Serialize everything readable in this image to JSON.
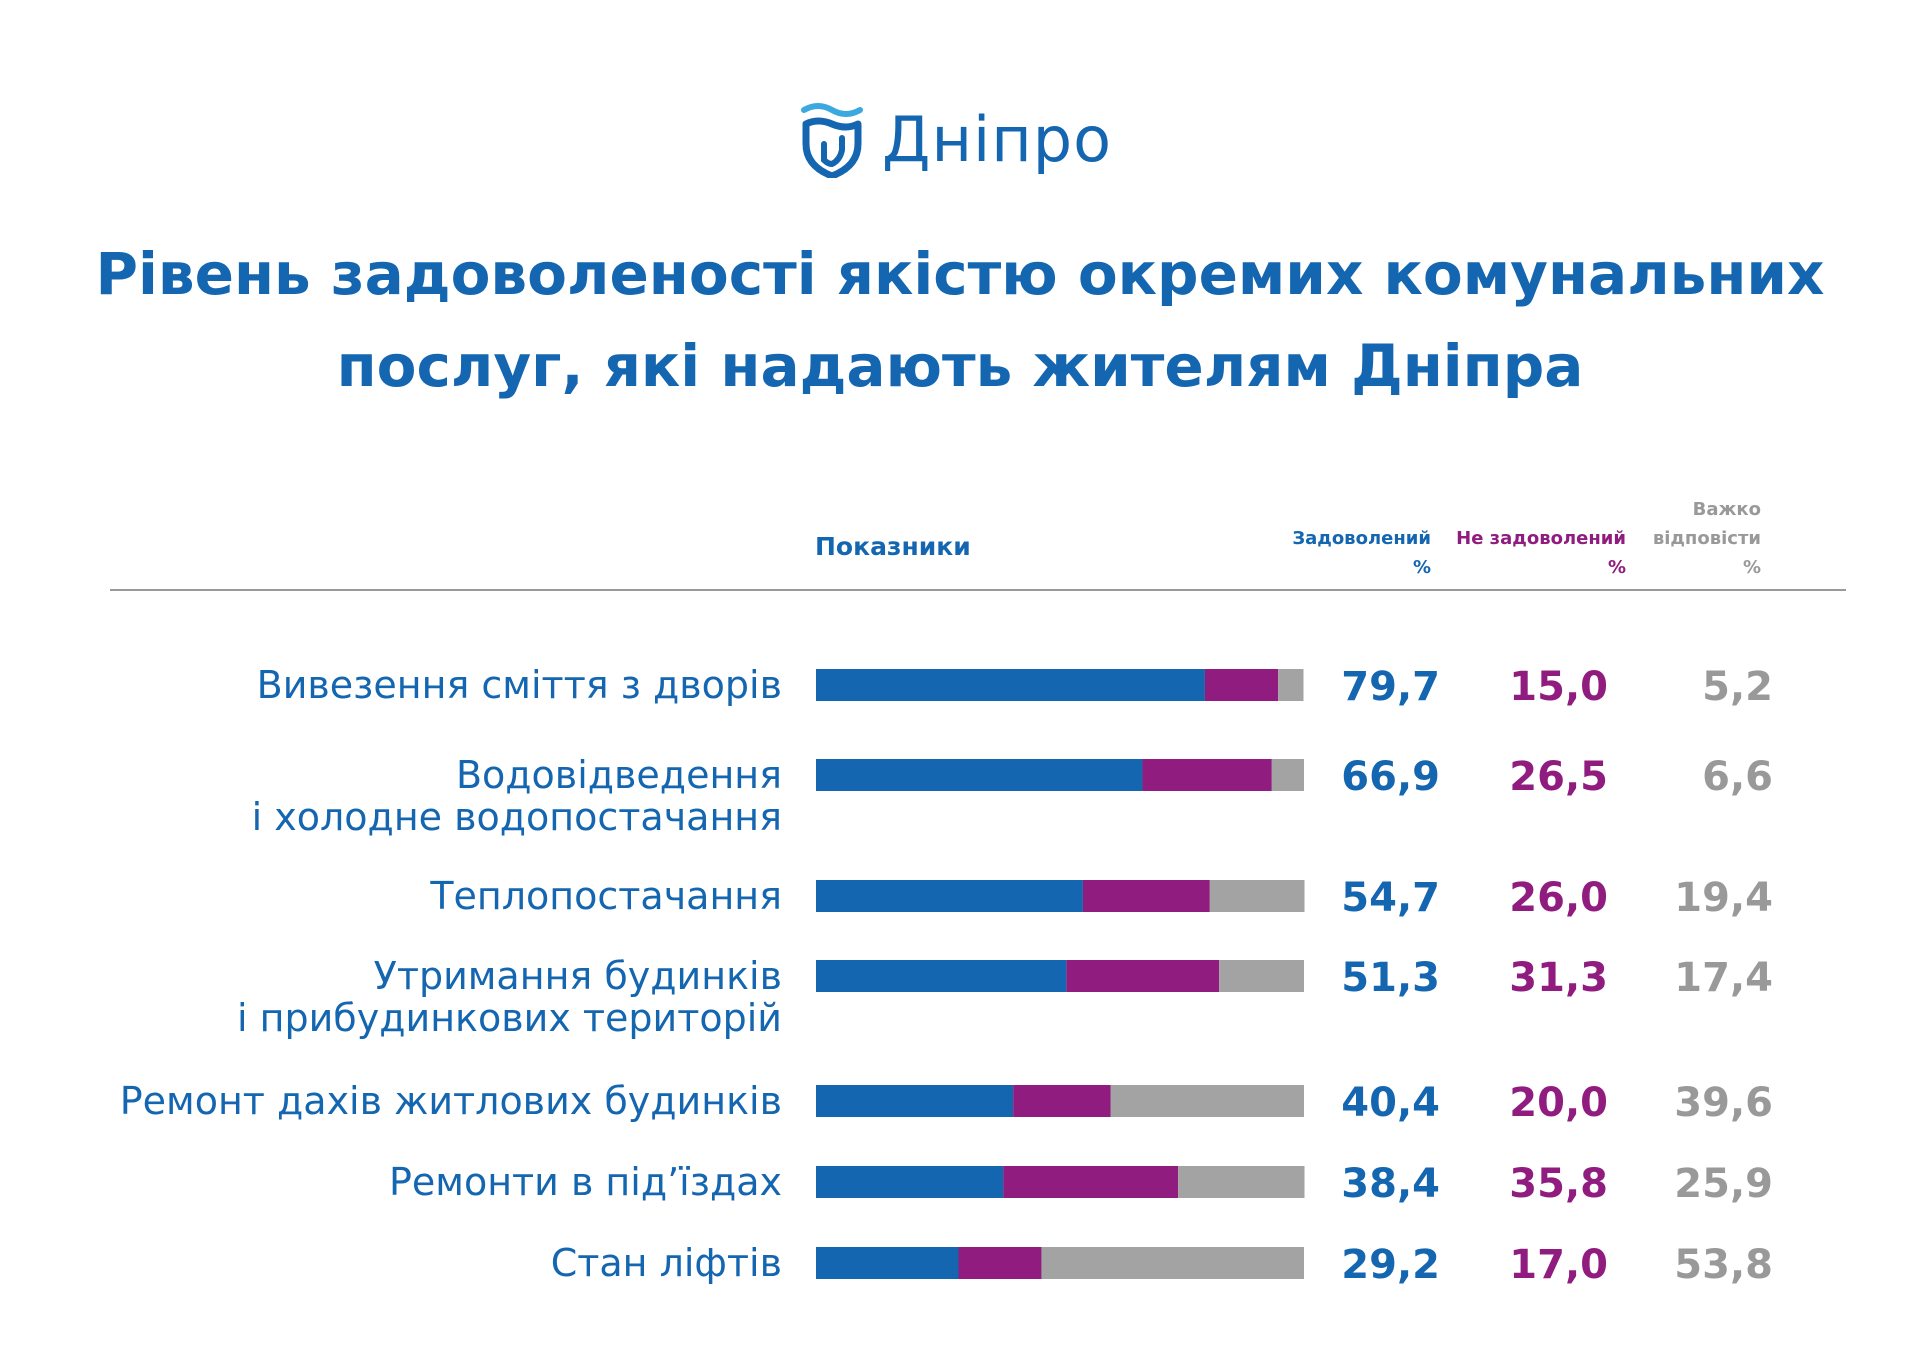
{
  "header": {
    "logo_text": "Дніпро"
  },
  "title_lines": [
    "Рівень задоволеності якістю окремих комунальних",
    "послуг, які надають жителям Дніпра"
  ],
  "table_header": {
    "indicators_label": "Показники",
    "satisfied_lines": [
      "Задоволений",
      "%"
    ],
    "not_satisfied_lines": [
      "Не задоволений",
      "%"
    ],
    "hard_to_say_lines": [
      "Важко",
      "відповісти",
      "%"
    ]
  },
  "colors": {
    "satisfied": "#1466b0",
    "not_satisfied": "#8f1c7e",
    "hard_to_say": "#a3a3a3",
    "title": "#1466b0"
  },
  "chart_data": {
    "type": "bar",
    "orientation": "horizontal",
    "stacked": true,
    "categories": [
      [
        "Вивезення сміття з дворів"
      ],
      [
        "Водовідведення",
        "і холодне водопостачання"
      ],
      [
        "Теплопостачання"
      ],
      [
        "Утримання будинків",
        "і прибудинкових територій"
      ],
      [
        "Ремонт дахів житлових будинків"
      ],
      [
        "Ремонти в під’їздах"
      ],
      [
        "Стан ліфтів"
      ]
    ],
    "series": [
      {
        "name": "Задоволений",
        "values": [
          79.7,
          66.9,
          54.7,
          51.3,
          40.4,
          38.4,
          29.2
        ],
        "labels": [
          "79,7",
          "66,9",
          "54,7",
          "51,3",
          "40,4",
          "38,4",
          "29,2"
        ]
      },
      {
        "name": "Не задоволений",
        "values": [
          15.0,
          26.5,
          26.0,
          31.3,
          20.0,
          35.8,
          17.0
        ],
        "labels": [
          "15,0",
          "26,5",
          "26,0",
          "31,3",
          "20,0",
          "35,8",
          "17,0"
        ]
      },
      {
        "name": "Важко відповісти",
        "values": [
          5.2,
          6.6,
          19.4,
          17.4,
          39.6,
          25.9,
          53.8
        ],
        "labels": [
          "5,2",
          "6,6",
          "19,4",
          "17,4",
          "39,6",
          "25,9",
          "53,8"
        ]
      }
    ],
    "xlim": [
      0,
      100
    ],
    "grid": false
  }
}
